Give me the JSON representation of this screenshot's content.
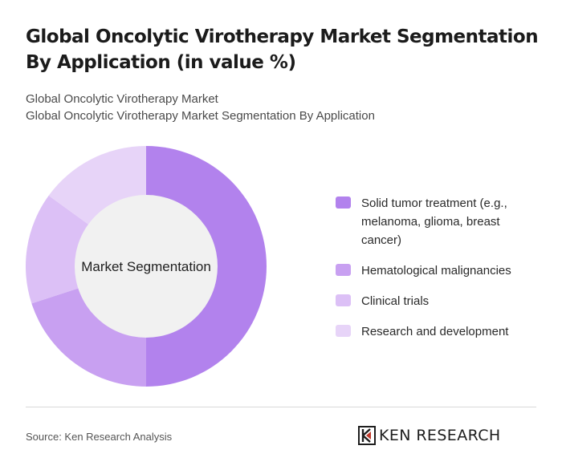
{
  "title": "Global Oncolytic Virotherapy Market Segmentation By Application (in value %)",
  "subtitle_lines": [
    "Global Oncolytic Virotherapy Market",
    "Global Oncolytic Virotherapy Market Segmentation By Application"
  ],
  "source": "Source: Ken Research Analysis",
  "logo_text": "KEN RESEARCH",
  "chart_data": {
    "type": "pie",
    "donut": true,
    "center_label": "Market Segmentation",
    "categories": [
      "Solid tumor treatment (e.g., melanoma, glioma, breast cancer)",
      "Hematological malignancies",
      "Clinical trials",
      "Research and development"
    ],
    "values": [
      50,
      20,
      15,
      15
    ],
    "colors": [
      "#b282ed",
      "#c8a0f1",
      "#dcc0f6",
      "#e7d4f8"
    ],
    "legend_position": "right"
  }
}
